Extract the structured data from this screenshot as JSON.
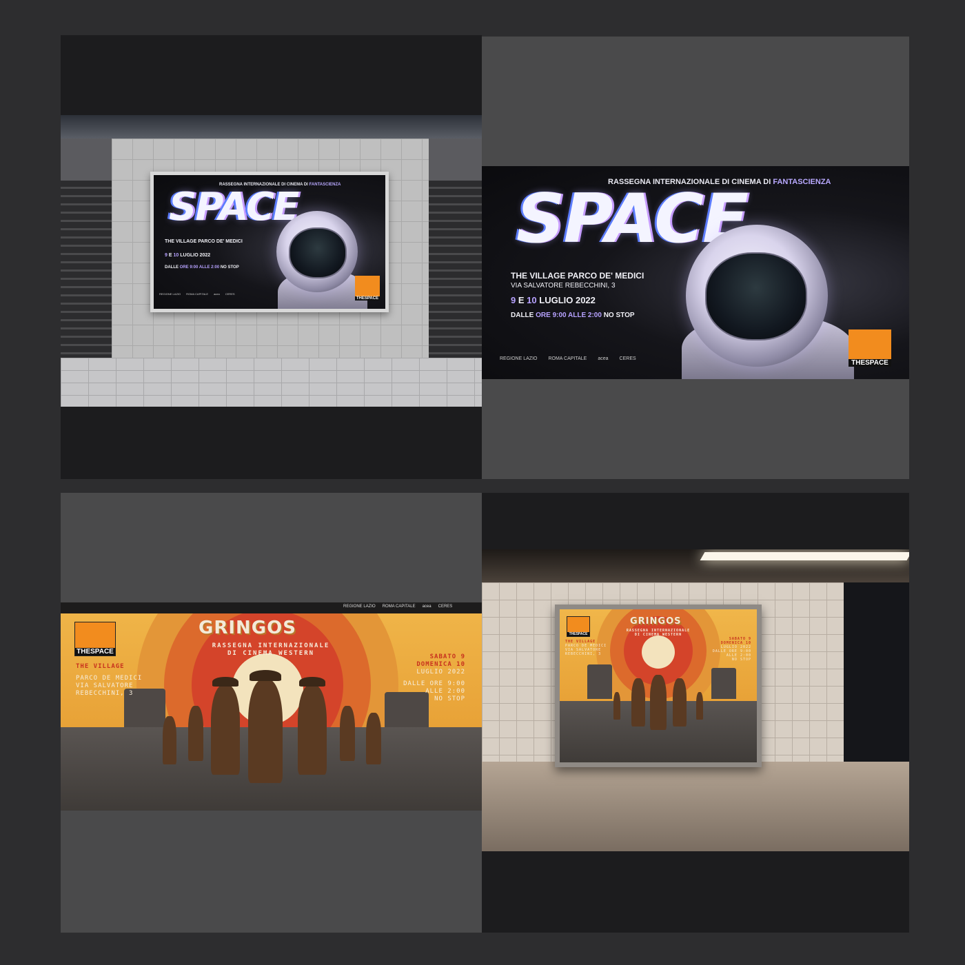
{
  "space": {
    "subtitle_prefix": "RASSEGNA INTERNAZIONALE DI CINEMA DI",
    "subtitle_highlight": "FANTASCIENZA",
    "title": "SPACE",
    "venue": "THE VILLAGE PARCO DE' MEDICI",
    "address": "VIA SALVATORE REBECCHINI, 3",
    "date_a": "9",
    "date_mid": "E",
    "date_b": "10",
    "date_rest": "LUGLIO 2022",
    "hours_1": "DALLE",
    "hours_2": "ORE 9:00",
    "hours_3": "ALLE 2:00",
    "hours_4": "NO STOP",
    "logo_text": "THESPACE",
    "sponsors": [
      "REGIONE LAZIO",
      "ROMA CAPITALE",
      "acea",
      "CERES"
    ]
  },
  "gringos": {
    "title": "GRINGOS",
    "subtitle_1": "RASSEGNA INTERNAZIONALE",
    "subtitle_2": "DI CINEMA WESTERN",
    "venue": "THE VILLAGE",
    "address_1": "PARCO DE MEDICI",
    "address_2": "VIA SALVATORE",
    "address_3": "REBECCHINI, 3",
    "day_1": "SABATO 9",
    "day_2": "DOMENICA 10",
    "month": "LUGLIO 2022",
    "hours_1": "DALLE ORE 9:00",
    "hours_2": "ALLE 2:00",
    "hours_3": "NO STOP",
    "logo_text": "THESPACE",
    "sponsors": [
      "REGIONE LAZIO",
      "ROMA CAPITALE",
      "acea",
      "CERES"
    ]
  },
  "colors": {
    "background": "#2d2d2f",
    "panel_dark": "#1c1c1e",
    "panel_gray": "#4a4a4b",
    "space_accent": "#b7a2ff",
    "gringos_red": "#c8321e",
    "logo_orange": "#f28c1e"
  }
}
